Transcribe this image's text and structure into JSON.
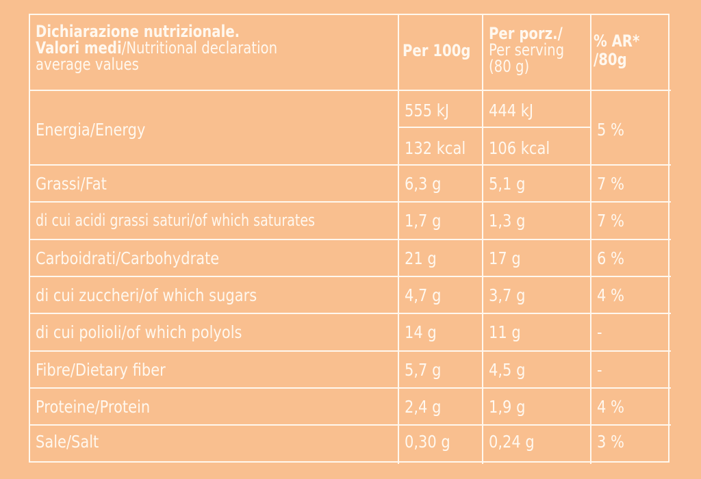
{
  "header": {
    "col1_line1": "Dichiarazione nutrizionale.",
    "col1_line2_bold": "Valori medi",
    "col1_line2_rest": "/Nutritional declaration",
    "col1_line3": "average values",
    "col2": "Per 100g",
    "col3_bold": "Per porz./",
    "col3_line2": "Per serving",
    "col3_line3": "(80 g)",
    "col4_line1": "% AR*",
    "col4_line2": "/80g"
  },
  "rows": [
    {
      "label": "Energia/Energy",
      "per100": [
        "555 kJ",
        "132 kcal"
      ],
      "serving": [
        "444 kJ",
        "106 kcal"
      ],
      "ar": "5 %"
    },
    {
      "label": "Grassi/Fat",
      "per100": "6,3 g",
      "serving": "5,1 g",
      "ar": "7 %"
    },
    {
      "label": "di cui acidi grassi saturi/of which saturates",
      "per100": "1,7 g",
      "serving": "1,3 g",
      "ar": "7 %"
    },
    {
      "label": "Carboidrati/Carbohydrate",
      "per100": "21 g",
      "serving": "17 g",
      "ar": "6 %"
    },
    {
      "label": "di cui zuccheri/of which sugars",
      "per100": "4,7 g",
      "serving": "3,7 g",
      "ar": "4 %"
    },
    {
      "label": "di cui polioli/of which polyols",
      "per100": "14 g",
      "serving": "11 g",
      "ar": "-"
    },
    {
      "label": "Fibre/Dietary fiber",
      "per100": "5,7 g",
      "serving": "4,5 g",
      "ar": "-"
    },
    {
      "label": "Proteine/Protein",
      "per100": "2,4 g",
      "serving": "1,9 g",
      "ar": "4 %"
    },
    {
      "label": "Sale/Salt",
      "per100": "0,30 g",
      "serving": "0,24 g",
      "ar": "3 %"
    }
  ]
}
